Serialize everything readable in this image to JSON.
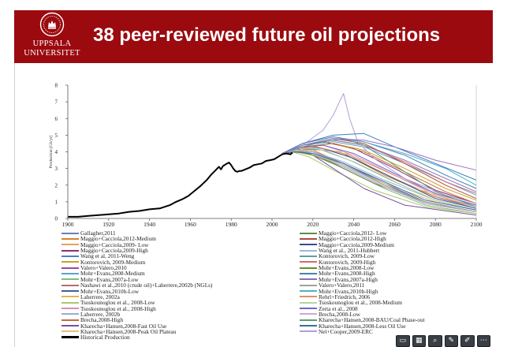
{
  "banner": {
    "color": "#9b0a0f",
    "university_line1": "UPPSALA",
    "university_line2": "UNIVERSITET",
    "title": "38 peer-reviewed future oil projections",
    "seal_icon": "uppsala-seal-icon"
  },
  "chart_data": {
    "type": "line",
    "title": "",
    "xlabel": "",
    "ylabel": "Production [Gb/yr]",
    "xlim": [
      1900,
      2100
    ],
    "ylim": [
      0,
      8
    ],
    "xticks": [
      "1900",
      "1920",
      "1940",
      "1960",
      "1980",
      "2000",
      "2020",
      "2040",
      "2060",
      "2080",
      "2100"
    ],
    "yticks": [
      "0",
      "1",
      "2",
      "3",
      "4",
      "5",
      "6",
      "7",
      "8"
    ],
    "historical": {
      "name": "Historical Production",
      "color": "#000000",
      "x": [
        1900,
        1905,
        1910,
        1915,
        1920,
        1925,
        1930,
        1935,
        1940,
        1945,
        1950,
        1953,
        1956,
        1959,
        1962,
        1965,
        1968,
        1970,
        1972,
        1974,
        1975,
        1976,
        1978,
        1979,
        1980,
        1981,
        1982,
        1983,
        1984,
        1985,
        1987,
        1989,
        1991,
        1993,
        1995,
        1997,
        1999,
        2001,
        2003,
        2005,
        2007,
        2009,
        2010
      ],
      "y": [
        0.1,
        0.1,
        0.15,
        0.2,
        0.25,
        0.3,
        0.4,
        0.45,
        0.55,
        0.6,
        0.8,
        1.0,
        1.15,
        1.35,
        1.65,
        1.95,
        2.3,
        2.6,
        2.85,
        3.1,
        2.95,
        3.15,
        3.3,
        3.35,
        3.2,
        3.0,
        2.85,
        2.8,
        2.85,
        2.85,
        2.95,
        3.05,
        3.2,
        3.25,
        3.3,
        3.45,
        3.5,
        3.55,
        3.7,
        3.85,
        3.9,
        3.85,
        3.95
      ]
    },
    "series": [
      {
        "name": "Gallagher, 2011",
        "color": "#6f7fb3",
        "x": [
          2005,
          2015,
          2025,
          2040,
          2060,
          2080,
          2100
        ],
        "y": [
          3.9,
          4.3,
          4.2,
          3.6,
          2.4,
          1.3,
          0.6
        ]
      },
      {
        "name": "Maggio+Cacciola,2012-Medium",
        "color": "#d9822b",
        "x": [
          2005,
          2012,
          2020,
          2035,
          2055,
          2080,
          2100
        ],
        "y": [
          3.9,
          4.2,
          4.35,
          3.9,
          2.6,
          1.3,
          0.7
        ]
      },
      {
        "name": "Maggio+Cacciola,2009- Low",
        "color": "#e6a15c",
        "x": [
          2005,
          2010,
          2018,
          2030,
          2050,
          2075,
          2100
        ],
        "y": [
          3.9,
          4.0,
          3.9,
          3.3,
          2.1,
          1.0,
          0.4
        ]
      },
      {
        "name": "Maggio+Cacciola,2009-High",
        "color": "#8f2f73",
        "x": [
          2005,
          2015,
          2025,
          2040,
          2060,
          2080,
          2100
        ],
        "y": [
          3.9,
          4.4,
          4.6,
          4.2,
          3.0,
          1.7,
          0.9
        ]
      },
      {
        "name": "Wang et al, 2011-Weng",
        "color": "#4a7fc4",
        "x": [
          2005,
          2015,
          2025,
          2040,
          2060,
          2080,
          2100
        ],
        "y": [
          3.9,
          4.2,
          4.1,
          3.4,
          2.2,
          1.1,
          0.5
        ]
      },
      {
        "name": "Kontorovich, 2009-Medium",
        "color": "#c9a227",
        "x": [
          2005,
          2015,
          2030,
          2045,
          2065,
          2085,
          2100
        ],
        "y": [
          3.9,
          4.3,
          4.5,
          4.1,
          3.0,
          1.8,
          1.1
        ]
      },
      {
        "name": "Valero+Valero,2010",
        "color": "#9e4a9b",
        "x": [
          2005,
          2012,
          2020,
          2035,
          2055,
          2075,
          2100
        ],
        "y": [
          3.9,
          4.1,
          4.0,
          3.2,
          2.0,
          1.0,
          0.4
        ]
      },
      {
        "name": "Mohr+Evans,2008-Medium",
        "color": "#5ba3c9",
        "x": [
          2005,
          2015,
          2030,
          2045,
          2065,
          2085,
          2100
        ],
        "y": [
          3.9,
          4.4,
          4.6,
          4.3,
          3.3,
          2.2,
          1.4
        ]
      },
      {
        "name": "Mohr+Evans,2007a-Low",
        "color": "#7fbf7f",
        "x": [
          2005,
          2012,
          2020,
          2035,
          2055,
          2075,
          2100
        ],
        "y": [
          3.9,
          4.0,
          3.8,
          3.0,
          1.8,
          0.8,
          0.3
        ]
      },
      {
        "name": "Nashawi et al.,2010 (crude oil)+Laherrere,2002b (NGLs)",
        "color": "#b86b6b",
        "x": [
          2005,
          2012,
          2020,
          2035,
          2055,
          2075,
          2100
        ],
        "y": [
          3.9,
          4.2,
          4.1,
          3.3,
          2.0,
          1.0,
          0.4
        ]
      },
      {
        "name": "Mohr+Evans,2010b-Low",
        "color": "#3f5f9f",
        "x": [
          2005,
          2012,
          2020,
          2035,
          2055,
          2075,
          2100
        ],
        "y": [
          3.9,
          4.1,
          4.0,
          3.3,
          2.1,
          1.0,
          0.4
        ]
      },
      {
        "name": "Laherrere, 2002a",
        "color": "#e0b84a",
        "x": [
          2005,
          2010,
          2020,
          2035,
          2055,
          2080,
          2100
        ],
        "y": [
          3.9,
          4.1,
          3.9,
          3.2,
          2.1,
          1.0,
          0.5
        ]
      },
      {
        "name": "Tsoskounoglou et al., 2008-Low",
        "color": "#a8c96b",
        "x": [
          2005,
          2010,
          2018,
          2030,
          2050,
          2075,
          2100
        ],
        "y": [
          3.9,
          4.0,
          3.7,
          2.9,
          1.7,
          0.7,
          0.3
        ]
      },
      {
        "name": "Tsoskounoglou et al., 2008-High",
        "color": "#d98fb8",
        "x": [
          2005,
          2015,
          2025,
          2040,
          2060,
          2080,
          2100
        ],
        "y": [
          3.9,
          4.3,
          4.4,
          3.8,
          2.6,
          1.4,
          0.7
        ]
      },
      {
        "name": "Laherrere, 2002b",
        "color": "#8fb0d9",
        "x": [
          2005,
          2012,
          2020,
          2035,
          2055,
          2080,
          2100
        ],
        "y": [
          3.9,
          4.1,
          4.0,
          3.4,
          2.3,
          1.1,
          0.5
        ]
      },
      {
        "name": "Brecha,2008-High",
        "color": "#c46a3a",
        "x": [
          2005,
          2015,
          2030,
          2045,
          2065,
          2085,
          2100
        ],
        "y": [
          3.9,
          4.3,
          4.5,
          4.0,
          2.8,
          1.6,
          0.9
        ]
      },
      {
        "name": "Kharecha+Hansen,2008-Fast Oil Use",
        "color": "#7a4fa3",
        "x": [
          2005,
          2012,
          2020,
          2030,
          2045,
          2065,
          2100
        ],
        "y": [
          3.9,
          4.1,
          3.8,
          3.0,
          1.8,
          0.8,
          0.2
        ]
      },
      {
        "name": "Kharecha+Hansen,2008-Peak Oil Plateau",
        "color": "#e3c07a",
        "x": [
          2005,
          2015,
          2025,
          2035,
          2050,
          2070,
          2100
        ],
        "y": [
          3.9,
          4.1,
          4.1,
          4.0,
          3.0,
          1.8,
          0.8
        ]
      },
      {
        "name": "Maggio+Cacciola,2012- Low",
        "color": "#5e8c4a",
        "x": [
          2005,
          2010,
          2018,
          2030,
          2050,
          2075,
          2100
        ],
        "y": [
          3.9,
          4.0,
          3.9,
          3.3,
          2.1,
          1.0,
          0.4
        ]
      },
      {
        "name": "Maggio+Cacciola,2012-High",
        "color": "#b0493f",
        "x": [
          2005,
          2015,
          2030,
          2045,
          2065,
          2085,
          2100
        ],
        "y": [
          3.9,
          4.4,
          4.8,
          4.5,
          3.3,
          2.0,
          1.2
        ]
      },
      {
        "name": "Maggio+Cacciola,2009-Medium",
        "color": "#2f4f8f",
        "x": [
          2005,
          2012,
          2022,
          2038,
          2058,
          2080,
          2100
        ],
        "y": [
          3.9,
          4.2,
          4.3,
          3.7,
          2.5,
          1.2,
          0.6
        ]
      },
      {
        "name": "Wang et al., 2011-Hubbert",
        "color": "#9fb8d8",
        "x": [
          2005,
          2012,
          2020,
          2035,
          2055,
          2075,
          2100
        ],
        "y": [
          3.9,
          4.1,
          4.0,
          3.2,
          2.0,
          0.9,
          0.4
        ]
      },
      {
        "name": "Kontorovich, 2009-Low",
        "color": "#5fa0a0",
        "x": [
          2005,
          2012,
          2020,
          2035,
          2055,
          2075,
          2100
        ],
        "y": [
          3.9,
          4.1,
          3.9,
          3.1,
          1.9,
          0.9,
          0.4
        ]
      },
      {
        "name": "Kontorovich, 2009-High",
        "color": "#d46b6b",
        "x": [
          2005,
          2015,
          2030,
          2045,
          2065,
          2085,
          2100
        ],
        "y": [
          3.9,
          4.4,
          4.7,
          4.4,
          3.4,
          2.2,
          1.5
        ]
      },
      {
        "name": "Mohr+Evans,2008-Low",
        "color": "#6b8e23",
        "x": [
          2005,
          2012,
          2020,
          2035,
          2055,
          2075,
          2100
        ],
        "y": [
          3.9,
          4.0,
          3.8,
          3.1,
          1.9,
          0.9,
          0.4
        ]
      },
      {
        "name": "Mohr+Evans,2008-High",
        "color": "#4682b4",
        "x": [
          2005,
          2015,
          2030,
          2045,
          2065,
          2085,
          2100
        ],
        "y": [
          3.9,
          4.5,
          4.9,
          4.6,
          3.8,
          2.6,
          1.8
        ]
      },
      {
        "name": "Mohr+Evans,2007a-High",
        "color": "#8b6fb8",
        "x": [
          2005,
          2015,
          2030,
          2045,
          2065,
          2085,
          2100
        ],
        "y": [
          3.9,
          4.4,
          4.7,
          4.4,
          3.5,
          2.4,
          1.6
        ]
      },
      {
        "name": "Valero+Valero,2011",
        "color": "#a0a0a0",
        "x": [
          2005,
          2012,
          2020,
          2035,
          2055,
          2075,
          2100
        ],
        "y": [
          3.9,
          4.1,
          4.0,
          3.3,
          2.0,
          1.0,
          0.4
        ]
      },
      {
        "name": "Mohr+Evans,2010b-High",
        "color": "#4fb0c6",
        "x": [
          2005,
          2015,
          2030,
          2045,
          2065,
          2085,
          2100
        ],
        "y": [
          3.9,
          4.4,
          4.8,
          4.6,
          3.9,
          3.0,
          2.0
        ]
      },
      {
        "name": "Rehrl+Friedrich, 2006",
        "color": "#e0906a",
        "x": [
          2005,
          2012,
          2022,
          2038,
          2058,
          2080,
          2100
        ],
        "y": [
          3.9,
          4.2,
          4.3,
          3.8,
          2.7,
          1.5,
          0.8
        ]
      },
      {
        "name": "Tsoskounoglou et al., 2008-Medium",
        "color": "#b7d49a",
        "x": [
          2005,
          2012,
          2022,
          2038,
          2058,
          2080,
          2100
        ],
        "y": [
          3.9,
          4.2,
          4.2,
          3.5,
          2.3,
          1.1,
          0.5
        ]
      },
      {
        "name": "Zerta et al., 2008",
        "color": "#6a6ad0",
        "x": [
          2005,
          2015,
          2025,
          2040,
          2060,
          2080,
          2100
        ],
        "y": [
          3.9,
          4.3,
          4.4,
          3.9,
          2.7,
          1.5,
          0.8
        ]
      },
      {
        "name": "Brecha,2008-Low",
        "color": "#cfa8d9",
        "x": [
          2005,
          2012,
          2020,
          2035,
          2055,
          2075,
          2100
        ],
        "y": [
          3.9,
          4.1,
          3.9,
          3.1,
          1.9,
          0.9,
          0.4
        ]
      },
      {
        "name": "Kharecha+Hansen,2008-BAU/Coal Phase-out",
        "color": "#5a9e6f",
        "x": [
          2005,
          2015,
          2025,
          2035,
          2045,
          2060,
          2080,
          2100
        ],
        "y": [
          3.9,
          4.3,
          4.6,
          4.8,
          4.4,
          3.2,
          1.6,
          0.7
        ]
      },
      {
        "name": "Kharecha+Hansen,2008-Less Oil Use",
        "color": "#3a6ea5",
        "x": [
          2005,
          2012,
          2020,
          2035,
          2055,
          2075,
          2100
        ],
        "y": [
          3.9,
          4.0,
          3.9,
          3.3,
          2.2,
          1.1,
          0.5
        ]
      },
      {
        "name": "Nel+Cooper,2009-ERC",
        "color": "#b29ddb",
        "x": [
          2005,
          2015,
          2025,
          2030,
          2033,
          2035,
          2038,
          2042,
          2050,
          2065,
          2085,
          2100
        ],
        "y": [
          3.9,
          4.4,
          5.3,
          6.2,
          7.0,
          7.5,
          6.0,
          4.6,
          3.6,
          2.4,
          1.4,
          0.9
        ]
      },
      {
        "name": "",
        "color": "#3f7fbf",
        "x": [
          2005,
          2015,
          2030,
          2045,
          2060,
          2080,
          2100
        ],
        "y": [
          3.9,
          4.5,
          5.0,
          5.1,
          4.3,
          3.3,
          2.3
        ]
      },
      {
        "name": "",
        "color": "#9f6fbf",
        "x": [
          2005,
          2015,
          2030,
          2045,
          2060,
          2080,
          2100
        ],
        "y": [
          3.9,
          4.4,
          4.8,
          4.7,
          4.3,
          3.5,
          2.9
        ]
      }
    ]
  },
  "legend_left": [
    {
      "label": "Gallagher,2011",
      "color": "#6f7fb3"
    },
    {
      "label": "Maggio+Cacciola,2012-Medium",
      "color": "#d9822b"
    },
    {
      "label": "Maggio+Cacciola,2009- Low",
      "color": "#e6a15c"
    },
    {
      "label": "Maggio+Cacciola,2009-High",
      "color": "#8f2f73"
    },
    {
      "label": "Wang et al, 2011-Weng",
      "color": "#4a7fc4"
    },
    {
      "label": "Kontorovich, 2009-Medium",
      "color": "#c9a227"
    },
    {
      "label": "Valero+Valero,2010",
      "color": "#9e4a9b"
    },
    {
      "label": "Mohr+Evans,2008-Medium",
      "color": "#5ba3c9"
    },
    {
      "label": "Mohr+Evans,2007a-Low",
      "color": "#7fbf7f"
    },
    {
      "label": "Nashawi et al.,2010 (crude oil)+Laherrere,2002b (NGLs)",
      "color": "#b86b6b"
    },
    {
      "label": "Mohr+Evans,2010b-Low",
      "color": "#3f5f9f"
    },
    {
      "label": "Laherrere, 2002a",
      "color": "#e0b84a"
    },
    {
      "label": "Tsoskounoglou et al., 2008-Low",
      "color": "#a8c96b"
    },
    {
      "label": "Tsoskounoglou et al., 2008-High",
      "color": "#d98fb8"
    },
    {
      "label": "Laherrere, 2002b",
      "color": "#8fb0d9"
    },
    {
      "label": "Brecha,2008-High",
      "color": "#c46a3a"
    },
    {
      "label": "Kharecha+Hansen,2008-Fast Oil Use",
      "color": "#7a4fa3"
    },
    {
      "label": "Kharecha+Hansen,2008-Peak Oil Plateau",
      "color": "#e3c07a"
    },
    {
      "label": "Historical Production",
      "color": "#000000"
    }
  ],
  "legend_right": [
    {
      "label": "Maggio+Cacciola,2012- Low",
      "color": "#5e8c4a"
    },
    {
      "label": "Maggio+Cacciola,2012-High",
      "color": "#b0493f"
    },
    {
      "label": "Maggio+Cacciola,2009-Medium",
      "color": "#2f4f8f"
    },
    {
      "label": "Wang et al., 2011-Hubbert",
      "color": "#9fb8d8"
    },
    {
      "label": "Kontorovich, 2009-Low",
      "color": "#5fa0a0"
    },
    {
      "label": "Kontorovich, 2009-High",
      "color": "#d46b6b"
    },
    {
      "label": "Mohr+Evans,2008-Low",
      "color": "#6b8e23"
    },
    {
      "label": "Mohr+Evans,2008-High",
      "color": "#4682b4"
    },
    {
      "label": "Mohr+Evans,2007a-High",
      "color": "#8b6fb8"
    },
    {
      "label": "Valero+Valero,2011",
      "color": "#a0a0a0"
    },
    {
      "label": "Mohr+Evans,2010b-High",
      "color": "#4fb0c6"
    },
    {
      "label": "Rehrl+Friedrich, 2006",
      "color": "#e0906a"
    },
    {
      "label": "Tsoskounoglou et al., 2008-Medium",
      "color": "#b7d49a"
    },
    {
      "label": "Zerta et al., 2008",
      "color": "#6a6ad0"
    },
    {
      "label": "Brecha,2008-Low",
      "color": "#cfa8d9"
    },
    {
      "label": "Kharecha+Hansen,2008-BAU/Coal Phase-out",
      "color": "#5a9e6f"
    },
    {
      "label": "Kharecha+Hansen,2008-Less Oil Use",
      "color": "#3a6ea5"
    },
    {
      "label": "Nel+Cooper,2009-ERC",
      "color": "#b29ddb"
    }
  ],
  "toolbar": {
    "icons": [
      "slides-icon",
      "grid-icon",
      "zoom-icon",
      "speaker-notes-icon",
      "pen-icon",
      "more-icon"
    ],
    "glyphs": [
      "▭",
      "▦",
      "⌕",
      "✎",
      "✐",
      "⋯"
    ]
  }
}
